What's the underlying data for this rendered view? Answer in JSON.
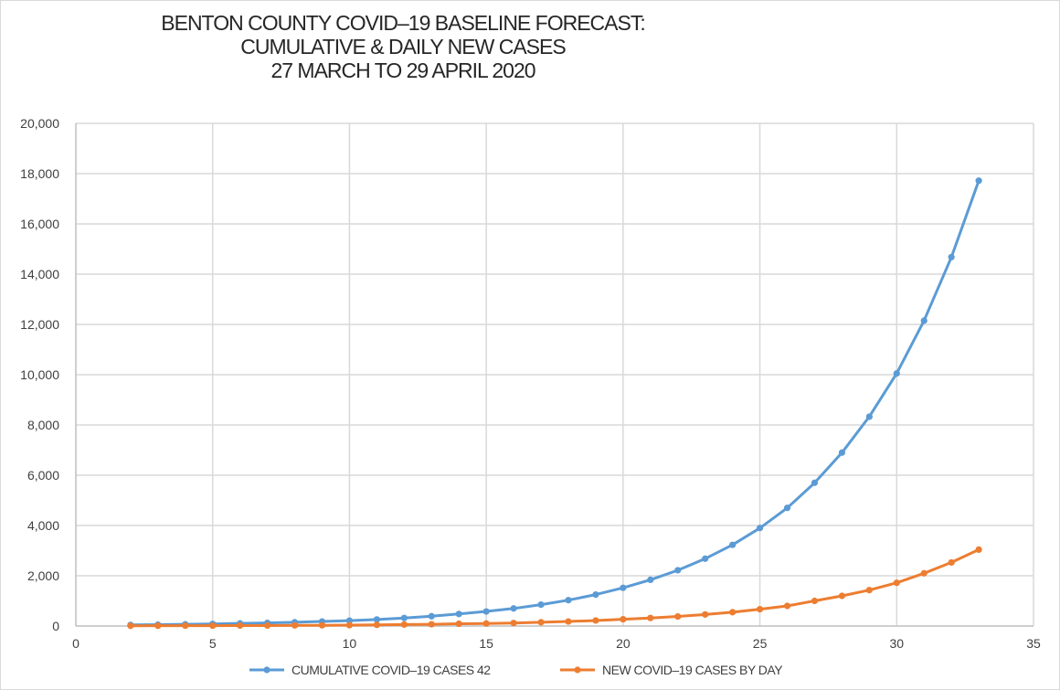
{
  "chart_data": {
    "type": "line",
    "title": [
      "BENTON  COUNTY  COVID–19  BASELINE    FORECAST:",
      "CUMULATIVE   & DAILY NEW  CASES",
      "27 MARCH    TO 29 APRIL  2020"
    ],
    "xlabel": "",
    "ylabel": "",
    "xlim": [
      0,
      35
    ],
    "ylim": [
      0,
      20000
    ],
    "x_ticks": [
      0,
      5,
      10,
      15,
      20,
      25,
      30,
      35
    ],
    "y_ticks": [
      0,
      2000,
      4000,
      6000,
      8000,
      10000,
      12000,
      14000,
      16000,
      18000,
      20000
    ],
    "x_tick_labels": [
      "0",
      "5",
      "10",
      "15",
      "20",
      "25",
      "30",
      "35"
    ],
    "y_tick_labels": [
      "0",
      "2,000",
      "4,000",
      "6,000",
      "8,000",
      "10,000",
      "12,000",
      "14,000",
      "16,000",
      "18,000",
      "20,000"
    ],
    "grid": true,
    "legend_position": "bottom",
    "x": [
      2,
      3,
      4,
      5,
      6,
      7,
      8,
      9,
      10,
      11,
      12,
      13,
      14,
      15,
      16,
      17,
      18,
      19,
      20,
      21,
      22,
      23,
      24,
      25,
      26,
      27,
      28,
      29,
      30,
      31,
      32,
      33
    ],
    "series": [
      {
        "name": "CUMULATIVE    COVID–19  CASES  42",
        "color": "#5b9bd5",
        "values": [
          42,
          55,
          70,
          85,
          105,
          125,
          150,
          180,
          215,
          260,
          320,
          390,
          480,
          580,
          700,
          850,
          1030,
          1250,
          1520,
          1840,
          2220,
          2680,
          3230,
          3900,
          4700,
          5700,
          6900,
          8330,
          10050,
          12150,
          14680,
          17720
        ]
      },
      {
        "name": "NEW  COVID–19  CASES  BY  DAY",
        "color": "#ed7d31",
        "values": [
          10,
          13,
          15,
          15,
          20,
          20,
          25,
          30,
          35,
          45,
          60,
          70,
          90,
          100,
          120,
          150,
          180,
          220,
          270,
          320,
          380,
          460,
          550,
          670,
          800,
          1000,
          1200,
          1430,
          1720,
          2100,
          2530,
          3040
        ]
      }
    ]
  }
}
